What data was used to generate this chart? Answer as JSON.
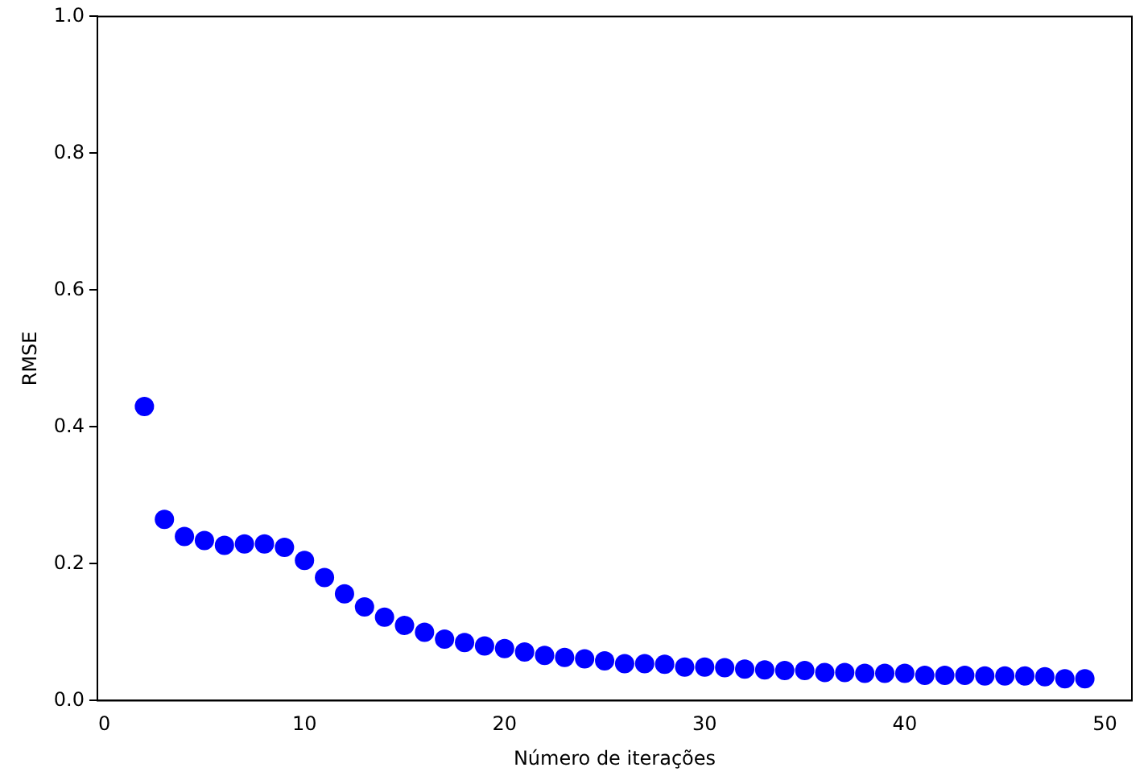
{
  "chart_data": {
    "type": "scatter",
    "xlabel": "Número de iterações",
    "ylabel": "RMSE",
    "marker": "circle",
    "grid": false,
    "legend": false,
    "xlim": [
      -0.35,
      51.35
    ],
    "xticks": [
      0,
      10,
      20,
      30,
      40,
      50
    ],
    "ylim": [
      0,
      1
    ],
    "yticks": [
      {
        "value": 0,
        "label": "0.0"
      },
      {
        "value": 0.2,
        "label": "0.2"
      },
      {
        "value": 0.4,
        "label": "0.4"
      },
      {
        "value": 0.6,
        "label": "0.6"
      },
      {
        "value": 0.8,
        "label": "0.8"
      },
      {
        "value": 1,
        "label": "1.0"
      }
    ],
    "series": [
      {
        "color": "#0000ff",
        "x": [
          2,
          3,
          4,
          5,
          6,
          7,
          8,
          9,
          10,
          11,
          12,
          13,
          14,
          15,
          16,
          17,
          18,
          19,
          20,
          21,
          22,
          23,
          24,
          25,
          26,
          27,
          28,
          29,
          30,
          31,
          32,
          33,
          34,
          35,
          36,
          37,
          38,
          39,
          40,
          41,
          42,
          43,
          44,
          45,
          46,
          47,
          48,
          49
        ],
        "values": [
          0.43,
          0.265,
          0.24,
          0.234,
          0.227,
          0.229,
          0.229,
          0.224,
          0.205,
          0.18,
          0.156,
          0.137,
          0.122,
          0.11,
          0.1,
          0.09,
          0.085,
          0.08,
          0.076,
          0.071,
          0.066,
          0.063,
          0.061,
          0.058,
          0.054,
          0.054,
          0.053,
          0.049,
          0.049,
          0.048,
          0.046,
          0.045,
          0.044,
          0.044,
          0.041,
          0.041,
          0.04,
          0.04,
          0.04,
          0.037,
          0.037,
          0.037,
          0.036,
          0.036,
          0.036,
          0.035,
          0.032,
          0.032
        ]
      }
    ]
  }
}
